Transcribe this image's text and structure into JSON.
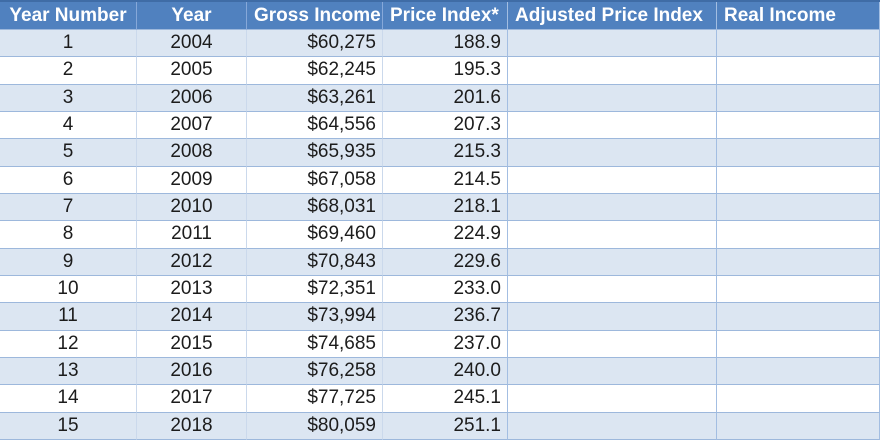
{
  "app": {
    "type": "spreadsheet-table"
  },
  "colors": {
    "header_bg": "#5081BF",
    "header_text": "#FFFFFF",
    "header_divider": "#86A8D9",
    "band_fill": "#DCE6F2",
    "plain_fill": "#FFFFFF",
    "row_border": "#9DB8DC",
    "col_border_light": "#CBD9EC",
    "col_border_strong": "#A3BEE2",
    "outer_top": "#3F6CA6",
    "cell_text": "#1C1C1C"
  },
  "table": {
    "columns": [
      {
        "label": "Year Number"
      },
      {
        "label": "Year"
      },
      {
        "label": "Gross Income"
      },
      {
        "label": "Price Index*"
      },
      {
        "label": "Adjusted Price Index"
      },
      {
        "label": "Real Income"
      }
    ],
    "rows": [
      [
        "1",
        "2004",
        "$60,275",
        "188.9",
        "",
        ""
      ],
      [
        "2",
        "2005",
        "$62,245",
        "195.3",
        "",
        ""
      ],
      [
        "3",
        "2006",
        "$63,261",
        "201.6",
        "",
        ""
      ],
      [
        "4",
        "2007",
        "$64,556",
        "207.3",
        "",
        ""
      ],
      [
        "5",
        "2008",
        "$65,935",
        "215.3",
        "",
        ""
      ],
      [
        "6",
        "2009",
        "$67,058",
        "214.5",
        "",
        ""
      ],
      [
        "7",
        "2010",
        "$68,031",
        "218.1",
        "",
        ""
      ],
      [
        "8",
        "2011",
        "$69,460",
        "224.9",
        "",
        ""
      ],
      [
        "9",
        "2012",
        "$70,843",
        "229.6",
        "",
        ""
      ],
      [
        "10",
        "2013",
        "$72,351",
        "233.0",
        "",
        ""
      ],
      [
        "11",
        "2014",
        "$73,994",
        "236.7",
        "",
        ""
      ],
      [
        "12",
        "2015",
        "$74,685",
        "237.0",
        "",
        ""
      ],
      [
        "13",
        "2016",
        "$76,258",
        "240.0",
        "",
        ""
      ],
      [
        "14",
        "2017",
        "$77,725",
        "245.1",
        "",
        ""
      ],
      [
        "15",
        "2018",
        "$80,059",
        "251.1",
        "",
        ""
      ]
    ]
  }
}
